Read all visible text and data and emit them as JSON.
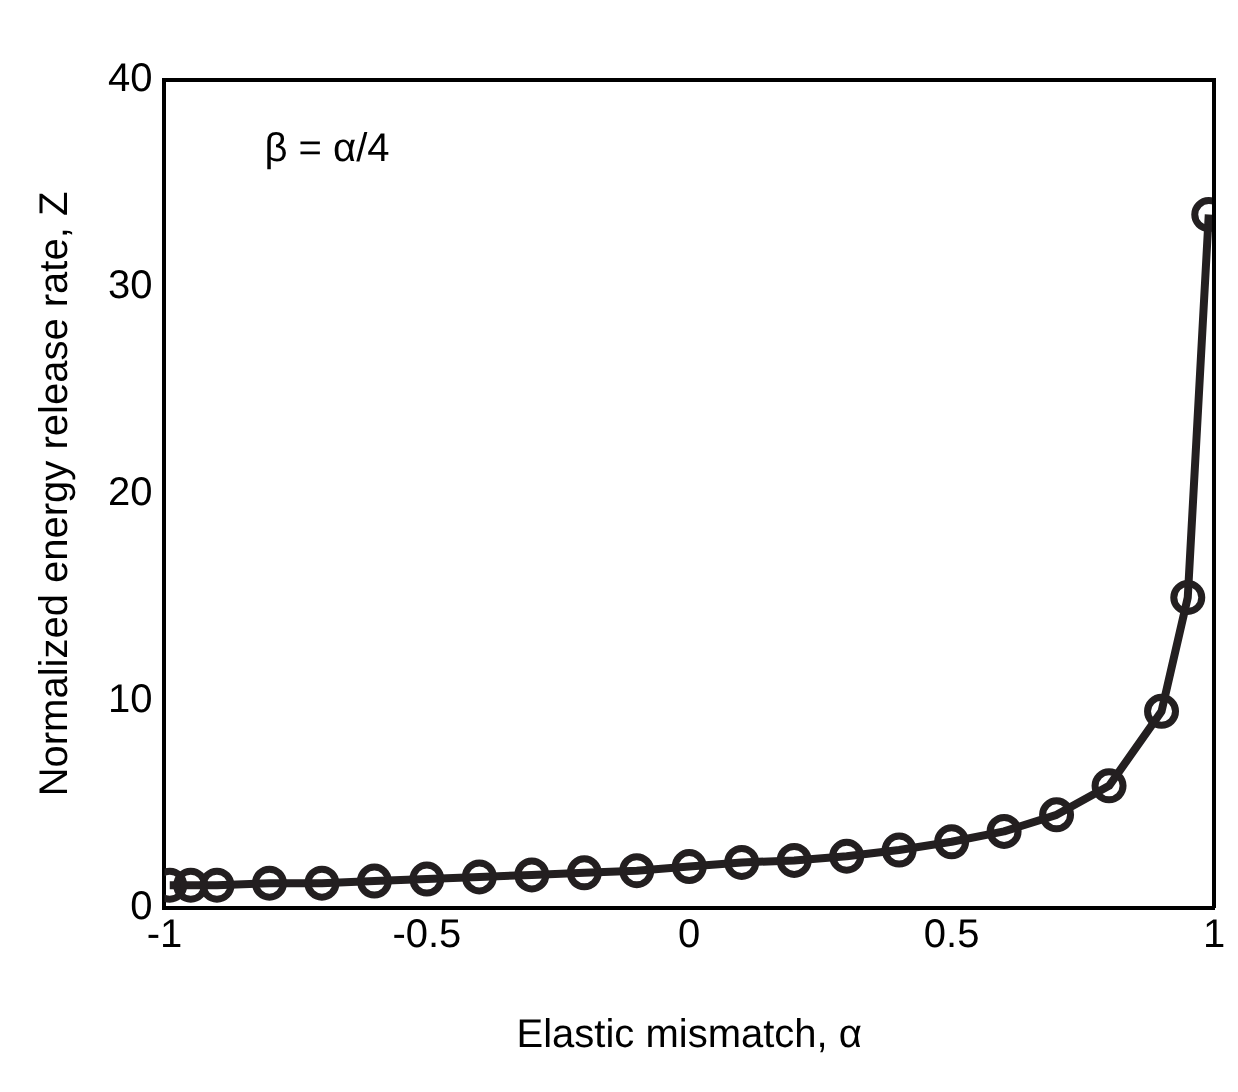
{
  "chart_data": {
    "type": "line",
    "xlabel": "Elastic mismatch, α",
    "ylabel": "Normalized energy release rate, Z",
    "annotations": [
      "β = α/4"
    ],
    "x": [
      -0.99,
      -0.95,
      -0.9,
      -0.8,
      -0.7,
      -0.6,
      -0.5,
      -0.4,
      -0.3,
      -0.2,
      -0.1,
      0,
      0.1,
      0.2,
      0.3,
      0.4,
      0.5,
      0.6,
      0.7,
      0.8,
      0.9,
      0.95,
      0.99
    ],
    "series": [
      {
        "color": "#231f20",
        "values": [
          1.1,
          1.1,
          1.1,
          1.2,
          1.2,
          1.3,
          1.4,
          1.5,
          1.6,
          1.7,
          1.8,
          2.0,
          2.2,
          2.3,
          2.5,
          2.8,
          3.2,
          3.7,
          4.5,
          5.9,
          9.5,
          15,
          33.5
        ]
      }
    ],
    "xlim": [
      -1,
      1
    ],
    "ylim": [
      0,
      40
    ],
    "xticks": [
      -1,
      -0.5,
      0,
      0.5,
      1
    ],
    "yticks": [
      0,
      10,
      20,
      30,
      40
    ],
    "marker": "circle",
    "line_style": "solid",
    "grid": false,
    "legend": false
  }
}
